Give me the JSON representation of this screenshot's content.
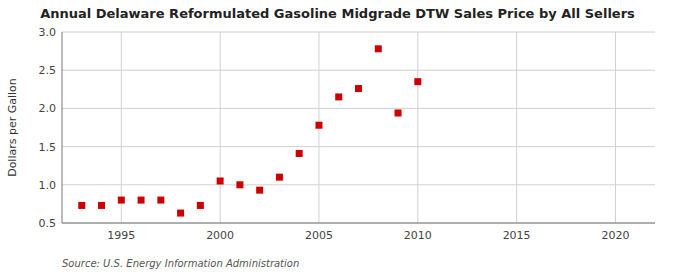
{
  "chart_data": {
    "type": "scatter",
    "title": "Annual Delaware Reformulated Gasoline Midgrade DTW Sales Price by All Sellers",
    "ylabel": "Dollars per Gallon",
    "source": "Source: U.S. Energy Information Administration",
    "x": [
      1993,
      1994,
      1995,
      1996,
      1997,
      1998,
      1999,
      2000,
      2001,
      2002,
      2003,
      2004,
      2005,
      2006,
      2007,
      2008,
      2009,
      2010
    ],
    "values": [
      0.73,
      0.73,
      0.8,
      0.8,
      0.8,
      0.63,
      0.73,
      1.05,
      1.0,
      0.93,
      1.1,
      1.41,
      1.78,
      2.15,
      2.26,
      2.78,
      1.94,
      2.35
    ],
    "color": "#cc0000",
    "marker": "square",
    "xlim": [
      1992,
      2022
    ],
    "ylim": [
      0.5,
      3.0
    ],
    "xticks": [
      1995,
      2000,
      2005,
      2010,
      2015,
      2020
    ],
    "yticks": [
      0.5,
      {
        "value": 1,
        "label": "1.0"
      },
      1.5,
      {
        "value": 2,
        "label": "2.0"
      },
      2.5,
      {
        "value": 3,
        "label": "3.0"
      }
    ],
    "grid": true
  }
}
